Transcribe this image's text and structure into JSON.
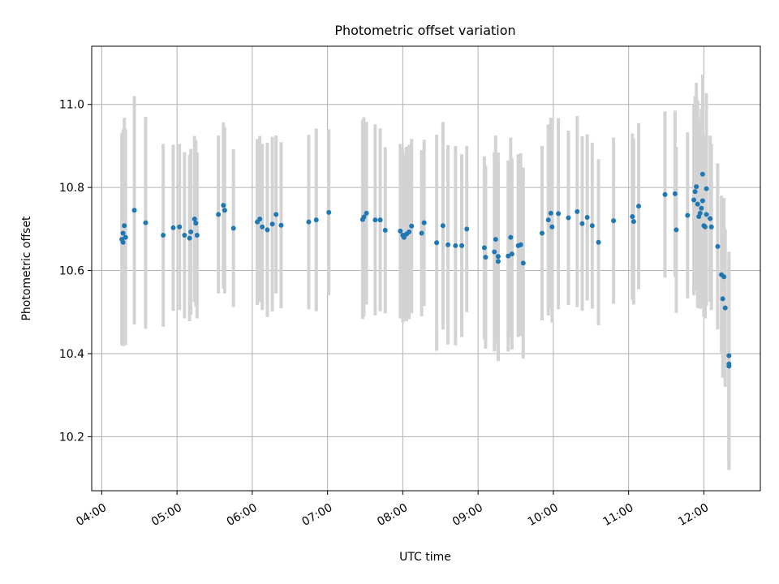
{
  "chart_data": {
    "type": "scatter",
    "title": "Photometric offset variation",
    "xlabel": "UTC time",
    "ylabel": "Photometric offset",
    "grid": true,
    "x_ticks": [
      "04:00",
      "05:00",
      "06:00",
      "07:00",
      "08:00",
      "09:00",
      "10:00",
      "11:00",
      "12:00"
    ],
    "y_ticks": [
      "10.2",
      "10.4",
      "10.6",
      "10.8",
      "11.0"
    ],
    "xlim": [
      "03:52",
      "12:45"
    ],
    "ylim": [
      10.07,
      11.14
    ],
    "colors": {
      "marker": "#1f77b4",
      "errorbar": "#d3d3d3",
      "grid": "#b0b0b0"
    },
    "points": [
      {
        "t": "04:16",
        "y": 10.675,
        "err": 0.255
      },
      {
        "t": "04:17",
        "y": 10.69,
        "err": 0.25
      },
      {
        "t": "04:17",
        "y": 10.668,
        "err": 0.25
      },
      {
        "t": "04:18",
        "y": 10.708,
        "err": 0.26
      },
      {
        "t": "04:19",
        "y": 10.68,
        "err": 0.26
      },
      {
        "t": "04:26",
        "y": 10.745,
        "err": 0.275
      },
      {
        "t": "04:35",
        "y": 10.715,
        "err": 0.255
      },
      {
        "t": "04:49",
        "y": 10.685,
        "err": 0.22
      },
      {
        "t": "04:57",
        "y": 10.703,
        "err": 0.2
      },
      {
        "t": "05:02",
        "y": 10.705,
        "err": 0.2
      },
      {
        "t": "05:06",
        "y": 10.685,
        "err": 0.2
      },
      {
        "t": "05:10",
        "y": 10.678,
        "err": 0.2
      },
      {
        "t": "05:11",
        "y": 10.693,
        "err": 0.2
      },
      {
        "t": "05:14",
        "y": 10.724,
        "err": 0.2
      },
      {
        "t": "05:15",
        "y": 10.714,
        "err": 0.2
      },
      {
        "t": "05:16",
        "y": 10.685,
        "err": 0.2
      },
      {
        "t": "05:33",
        "y": 10.735,
        "err": 0.19
      },
      {
        "t": "05:37",
        "y": 10.757,
        "err": 0.2
      },
      {
        "t": "05:38",
        "y": 10.745,
        "err": 0.2
      },
      {
        "t": "05:45",
        "y": 10.702,
        "err": 0.19
      },
      {
        "t": "06:04",
        "y": 10.717,
        "err": 0.2
      },
      {
        "t": "06:06",
        "y": 10.724,
        "err": 0.2
      },
      {
        "t": "06:08",
        "y": 10.705,
        "err": 0.2
      },
      {
        "t": "06:12",
        "y": 10.698,
        "err": 0.21
      },
      {
        "t": "06:16",
        "y": 10.712,
        "err": 0.21
      },
      {
        "t": "06:19",
        "y": 10.735,
        "err": 0.19
      },
      {
        "t": "06:23",
        "y": 10.709,
        "err": 0.2
      },
      {
        "t": "06:45",
        "y": 10.717,
        "err": 0.21
      },
      {
        "t": "06:51",
        "y": 10.722,
        "err": 0.22
      },
      {
        "t": "07:01",
        "y": 10.74,
        "err": 0.2
      },
      {
        "t": "07:28",
        "y": 10.723,
        "err": 0.24
      },
      {
        "t": "07:29",
        "y": 10.729,
        "err": 0.24
      },
      {
        "t": "07:31",
        "y": 10.738,
        "err": 0.22
      },
      {
        "t": "07:38",
        "y": 10.722,
        "err": 0.23
      },
      {
        "t": "07:42",
        "y": 10.722,
        "err": 0.22
      },
      {
        "t": "07:46",
        "y": 10.697,
        "err": 0.2
      },
      {
        "t": "07:58",
        "y": 10.695,
        "err": 0.21
      },
      {
        "t": "08:00",
        "y": 10.685,
        "err": 0.21
      },
      {
        "t": "08:01",
        "y": 10.68,
        "err": 0.2
      },
      {
        "t": "08:03",
        "y": 10.688,
        "err": 0.21
      },
      {
        "t": "08:05",
        "y": 10.693,
        "err": 0.21
      },
      {
        "t": "08:07",
        "y": 10.707,
        "err": 0.21
      },
      {
        "t": "08:15",
        "y": 10.69,
        "err": 0.2
      },
      {
        "t": "08:17",
        "y": 10.715,
        "err": 0.2
      },
      {
        "t": "08:27",
        "y": 10.667,
        "err": 0.26
      },
      {
        "t": "08:32",
        "y": 10.708,
        "err": 0.25
      },
      {
        "t": "08:36",
        "y": 10.662,
        "err": 0.24
      },
      {
        "t": "08:42",
        "y": 10.66,
        "err": 0.24
      },
      {
        "t": "08:47",
        "y": 10.66,
        "err": 0.22
      },
      {
        "t": "08:51",
        "y": 10.7,
        "err": 0.2
      },
      {
        "t": "09:05",
        "y": 10.655,
        "err": 0.22
      },
      {
        "t": "09:06",
        "y": 10.632,
        "err": 0.22
      },
      {
        "t": "09:13",
        "y": 10.645,
        "err": 0.24
      },
      {
        "t": "09:14",
        "y": 10.675,
        "err": 0.25
      },
      {
        "t": "09:16",
        "y": 10.622,
        "err": 0.24
      },
      {
        "t": "09:16",
        "y": 10.634,
        "err": 0.25
      },
      {
        "t": "09:24",
        "y": 10.635,
        "err": 0.23
      },
      {
        "t": "09:26",
        "y": 10.68,
        "err": 0.24
      },
      {
        "t": "09:27",
        "y": 10.64,
        "err": 0.23
      },
      {
        "t": "09:32",
        "y": 10.66,
        "err": 0.22
      },
      {
        "t": "09:34",
        "y": 10.662,
        "err": 0.22
      },
      {
        "t": "09:36",
        "y": 10.618,
        "err": 0.23
      },
      {
        "t": "09:51",
        "y": 10.69,
        "err": 0.21
      },
      {
        "t": "09:56",
        "y": 10.722,
        "err": 0.23
      },
      {
        "t": "09:58",
        "y": 10.738,
        "err": 0.23
      },
      {
        "t": "09:59",
        "y": 10.705,
        "err": 0.23
      },
      {
        "t": "10:04",
        "y": 10.737,
        "err": 0.23
      },
      {
        "t": "10:12",
        "y": 10.727,
        "err": 0.21
      },
      {
        "t": "10:19",
        "y": 10.742,
        "err": 0.23
      },
      {
        "t": "10:23",
        "y": 10.713,
        "err": 0.21
      },
      {
        "t": "10:27",
        "y": 10.728,
        "err": 0.2
      },
      {
        "t": "10:31",
        "y": 10.708,
        "err": 0.2
      },
      {
        "t": "10:36",
        "y": 10.668,
        "err": 0.2
      },
      {
        "t": "10:48",
        "y": 10.72,
        "err": 0.2
      },
      {
        "t": "11:03",
        "y": 10.73,
        "err": 0.2
      },
      {
        "t": "11:04",
        "y": 10.718,
        "err": 0.2
      },
      {
        "t": "11:08",
        "y": 10.755,
        "err": 0.2
      },
      {
        "t": "11:29",
        "y": 10.783,
        "err": 0.2
      },
      {
        "t": "11:37",
        "y": 10.785,
        "err": 0.2
      },
      {
        "t": "11:38",
        "y": 10.698,
        "err": 0.2
      },
      {
        "t": "11:47",
        "y": 10.733,
        "err": 0.2
      },
      {
        "t": "11:52",
        "y": 10.77,
        "err": 0.23
      },
      {
        "t": "11:53",
        "y": 10.79,
        "err": 0.23
      },
      {
        "t": "11:54",
        "y": 10.802,
        "err": 0.25
      },
      {
        "t": "11:55",
        "y": 10.76,
        "err": 0.25
      },
      {
        "t": "11:56",
        "y": 10.73,
        "err": 0.22
      },
      {
        "t": "11:57",
        "y": 10.738,
        "err": 0.23
      },
      {
        "t": "11:58",
        "y": 10.75,
        "err": 0.24
      },
      {
        "t": "11:59",
        "y": 10.768,
        "err": 0.24
      },
      {
        "t": "11:59",
        "y": 10.832,
        "err": 0.24
      },
      {
        "t": "12:00",
        "y": 10.708,
        "err": 0.22
      },
      {
        "t": "12:01",
        "y": 10.705,
        "err": 0.22
      },
      {
        "t": "12:02",
        "y": 10.735,
        "err": 0.22
      },
      {
        "t": "12:02",
        "y": 10.797,
        "err": 0.23
      },
      {
        "t": "12:05",
        "y": 10.725,
        "err": 0.2
      },
      {
        "t": "12:06",
        "y": 10.705,
        "err": 0.2
      },
      {
        "t": "12:11",
        "y": 10.658,
        "err": 0.2
      },
      {
        "t": "12:14",
        "y": 10.59,
        "err": 0.19
      },
      {
        "t": "12:15",
        "y": 10.532,
        "err": 0.19
      },
      {
        "t": "12:16",
        "y": 10.585,
        "err": 0.19
      },
      {
        "t": "12:17",
        "y": 10.51,
        "err": 0.19
      },
      {
        "t": "12:20",
        "y": 10.395,
        "err": 0.25
      },
      {
        "t": "12:20",
        "y": 10.37,
        "err": 0.25
      },
      {
        "t": "12:20",
        "y": 10.375,
        "err": 0.25
      }
    ]
  }
}
